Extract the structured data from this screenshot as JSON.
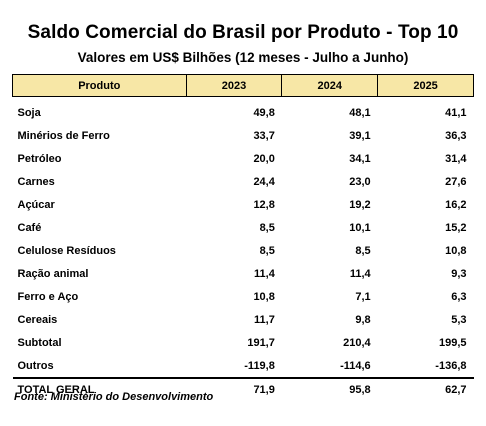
{
  "title": "Saldo Comercial do Brasil por Produto - Top 10",
  "subtitle": "Valores em US$ Bilhões (12 meses - Julho a Junho)",
  "table": {
    "headers": [
      "Produto",
      "2023",
      "2024",
      "2025"
    ],
    "rows": [
      [
        "Soja",
        "49,8",
        "48,1",
        "41,1"
      ],
      [
        "Minérios de Ferro",
        "33,7",
        "39,1",
        "36,3"
      ],
      [
        "Petróleo",
        "20,0",
        "34,1",
        "31,4"
      ],
      [
        "Carnes",
        "24,4",
        "23,0",
        "27,6"
      ],
      [
        "Açúcar",
        "12,8",
        "19,2",
        "16,2"
      ],
      [
        "Café",
        "8,5",
        "10,1",
        "15,2"
      ],
      [
        "Celulose Resíduos",
        "8,5",
        "8,5",
        "10,8"
      ],
      [
        "Ração animal",
        "11,4",
        "11,4",
        "9,3"
      ],
      [
        "Ferro e Aço",
        "10,8",
        "7,1",
        "6,3"
      ],
      [
        "Cereais",
        "11,7",
        "9,8",
        "5,3"
      ],
      [
        "Subtotal",
        "191,7",
        "210,4",
        "199,5"
      ],
      [
        "Outros",
        "-119,8",
        "-114,6",
        "-136,8"
      ]
    ],
    "total": [
      "TOTAL GERAL",
      "71,9",
      "95,8",
      "62,7"
    ]
  },
  "source": "Fonte: Ministério do Desenvolvimento",
  "colors": {
    "header_bg": "#f7e7a6"
  }
}
